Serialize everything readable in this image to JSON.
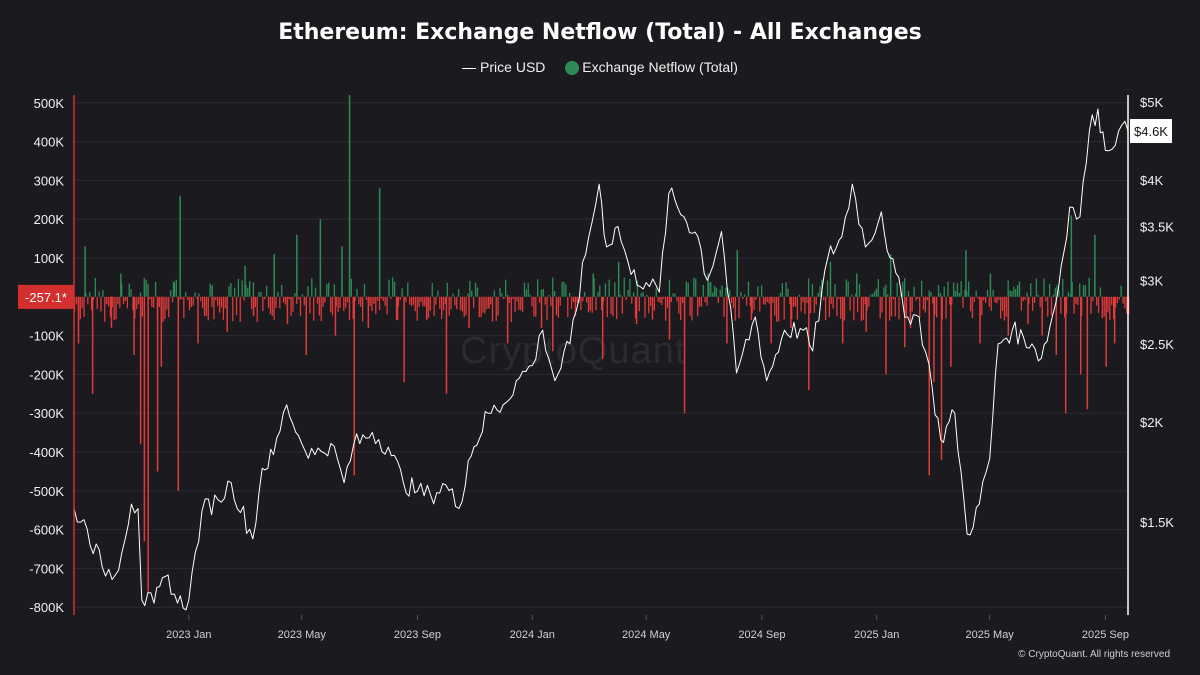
{
  "title": "Ethereum: Exchange Netflow (Total) - All Exchanges",
  "legend": {
    "price_label": "Price USD",
    "netflow_label": "Exchange Netflow (Total)"
  },
  "watermark": "CryptoQuant",
  "footer": "© CryptoQuant. All rights reserved",
  "colors": {
    "background": "#1b1b1f",
    "inflow": "#2e8b57",
    "outflow": "#e03a3a",
    "price": "#ffffff",
    "current_netflow_tag": "#d32f2f"
  },
  "current_values": {
    "netflow_label": "-257.1*",
    "netflow": -257.1,
    "price_label": "$4.6K",
    "price": 4600
  },
  "chart_data": {
    "type": "bar+line",
    "title": "Ethereum: Exchange Netflow (Total) - All Exchanges",
    "x_range": [
      "2022-09-01",
      "2025-09-25"
    ],
    "x_ticks": [
      {
        "date": "2023-01-01",
        "label": "2023 Jan"
      },
      {
        "date": "2023-05-01",
        "label": "2023 May"
      },
      {
        "date": "2023-09-01",
        "label": "2023 Sep"
      },
      {
        "date": "2024-01-01",
        "label": "2024 Jan"
      },
      {
        "date": "2024-05-01",
        "label": "2024 May"
      },
      {
        "date": "2024-09-01",
        "label": "2024 Sep"
      },
      {
        "date": "2025-01-01",
        "label": "2025 Jan"
      },
      {
        "date": "2025-05-01",
        "label": "2025 May"
      },
      {
        "date": "2025-09-01",
        "label": "2025 Sep"
      }
    ],
    "left_axis": {
      "series": "Exchange Netflow (Total)",
      "range": [
        -820000,
        520000
      ],
      "ticks": [
        {
          "value": 500000,
          "label": "500K"
        },
        {
          "value": 400000,
          "label": "400K"
        },
        {
          "value": 300000,
          "label": "300K"
        },
        {
          "value": 200000,
          "label": "200K"
        },
        {
          "value": 100000,
          "label": "100K"
        },
        {
          "value": -100000,
          "label": "-100K"
        },
        {
          "value": -200000,
          "label": "-200K"
        },
        {
          "value": -300000,
          "label": "-300K"
        },
        {
          "value": -400000,
          "label": "-400K"
        },
        {
          "value": -500000,
          "label": "-500K"
        },
        {
          "value": -600000,
          "label": "-600K"
        },
        {
          "value": -700000,
          "label": "-700K"
        },
        {
          "value": -800000,
          "label": "-800K"
        }
      ]
    },
    "right_axis": {
      "series": "Price USD",
      "scale": "log",
      "range": [
        1150,
        5100
      ],
      "ticks": [
        {
          "value": 5000,
          "label": "$5K"
        },
        {
          "value": 4000,
          "label": "$4K"
        },
        {
          "value": 3500,
          "label": "$3.5K"
        },
        {
          "value": 3000,
          "label": "$3K"
        },
        {
          "value": 2500,
          "label": "$2.5K"
        },
        {
          "value": 2000,
          "label": "$2K"
        },
        {
          "value": 1500,
          "label": "$1.5K"
        }
      ]
    },
    "series": [
      {
        "name": "Price USD",
        "kind": "line",
        "axis": "right",
        "points": [
          [
            "2022-09-01",
            1560
          ],
          [
            "2022-09-15",
            1470
          ],
          [
            "2022-10-01",
            1320
          ],
          [
            "2022-10-15",
            1290
          ],
          [
            "2022-11-01",
            1580
          ],
          [
            "2022-11-08",
            1560
          ],
          [
            "2022-11-12",
            1200
          ],
          [
            "2022-11-25",
            1190
          ],
          [
            "2022-12-10",
            1290
          ],
          [
            "2022-12-20",
            1190
          ],
          [
            "2023-01-01",
            1200
          ],
          [
            "2023-01-15",
            1550
          ],
          [
            "2023-02-01",
            1600
          ],
          [
            "2023-02-15",
            1680
          ],
          [
            "2023-03-10",
            1430
          ],
          [
            "2023-03-20",
            1750
          ],
          [
            "2023-04-01",
            1820
          ],
          [
            "2023-04-15",
            2100
          ],
          [
            "2023-05-01",
            1880
          ],
          [
            "2023-05-15",
            1820
          ],
          [
            "2023-06-01",
            1880
          ],
          [
            "2023-06-15",
            1680
          ],
          [
            "2023-06-25",
            1870
          ],
          [
            "2023-07-15",
            1940
          ],
          [
            "2023-08-01",
            1860
          ],
          [
            "2023-08-17",
            1680
          ],
          [
            "2023-09-01",
            1640
          ],
          [
            "2023-09-15",
            1620
          ],
          [
            "2023-10-01",
            1670
          ],
          [
            "2023-10-15",
            1560
          ],
          [
            "2023-10-25",
            1790
          ],
          [
            "2023-11-15",
            2050
          ],
          [
            "2023-12-01",
            2100
          ],
          [
            "2023-12-15",
            2250
          ],
          [
            "2024-01-01",
            2350
          ],
          [
            "2024-01-12",
            2600
          ],
          [
            "2024-01-25",
            2250
          ],
          [
            "2024-02-10",
            2500
          ],
          [
            "2024-03-01",
            3400
          ],
          [
            "2024-03-12",
            3950
          ],
          [
            "2024-03-20",
            3300
          ],
          [
            "2024-04-01",
            3500
          ],
          [
            "2024-04-15",
            3050
          ],
          [
            "2024-05-01",
            2980
          ],
          [
            "2024-05-15",
            2900
          ],
          [
            "2024-05-25",
            3850
          ],
          [
            "2024-06-10",
            3600
          ],
          [
            "2024-06-25",
            3400
          ],
          [
            "2024-07-05",
            3000
          ],
          [
            "2024-07-20",
            3450
          ],
          [
            "2024-08-05",
            2300
          ],
          [
            "2024-08-25",
            2700
          ],
          [
            "2024-09-06",
            2250
          ],
          [
            "2024-09-25",
            2600
          ],
          [
            "2024-10-15",
            2600
          ],
          [
            "2024-10-25",
            2450
          ],
          [
            "2024-11-10",
            3200
          ],
          [
            "2024-11-25",
            3400
          ],
          [
            "2024-12-06",
            3950
          ],
          [
            "2024-12-20",
            3300
          ],
          [
            "2025-01-06",
            3650
          ],
          [
            "2025-01-15",
            3200
          ],
          [
            "2025-02-03",
            2700
          ],
          [
            "2025-02-15",
            2700
          ],
          [
            "2025-03-01",
            2200
          ],
          [
            "2025-03-10",
            1900
          ],
          [
            "2025-03-25",
            2050
          ],
          [
            "2025-04-07",
            1450
          ],
          [
            "2025-04-20",
            1580
          ],
          [
            "2025-05-01",
            1800
          ],
          [
            "2025-05-10",
            2500
          ],
          [
            "2025-05-25",
            2600
          ],
          [
            "2025-06-15",
            2500
          ],
          [
            "2025-06-25",
            2400
          ],
          [
            "2025-07-10",
            2800
          ],
          [
            "2025-07-25",
            3700
          ],
          [
            "2025-08-05",
            3600
          ],
          [
            "2025-08-15",
            4600
          ],
          [
            "2025-08-24",
            4900
          ],
          [
            "2025-09-01",
            4350
          ],
          [
            "2025-09-15",
            4600
          ],
          [
            "2025-09-25",
            4600
          ]
        ]
      },
      {
        "name": "Exchange Netflow (Total)",
        "kind": "bar",
        "axis": "left",
        "note": "daily bars; positive values shown in green (inflow), negative in red (outflow); notable spikes listed",
        "points": [
          [
            "2022-09-05",
            -120000
          ],
          [
            "2022-09-12",
            130000
          ],
          [
            "2022-09-20",
            -250000
          ],
          [
            "2022-10-10",
            -80000
          ],
          [
            "2022-10-20",
            60000
          ],
          [
            "2022-11-03",
            -150000
          ],
          [
            "2022-11-10",
            -380000
          ],
          [
            "2022-11-14",
            -630000
          ],
          [
            "2022-11-18",
            -760000
          ],
          [
            "2022-11-28",
            -450000
          ],
          [
            "2022-12-02",
            -180000
          ],
          [
            "2022-12-15",
            40000
          ],
          [
            "2022-12-20",
            -500000
          ],
          [
            "2022-12-22",
            260000
          ],
          [
            "2023-01-10",
            -120000
          ],
          [
            "2023-01-25",
            30000
          ],
          [
            "2023-02-10",
            -90000
          ],
          [
            "2023-03-01",
            80000
          ],
          [
            "2023-03-10",
            -50000
          ],
          [
            "2023-04-01",
            110000
          ],
          [
            "2023-04-15",
            -70000
          ],
          [
            "2023-04-25",
            160000
          ],
          [
            "2023-05-05",
            -150000
          ],
          [
            "2023-05-20",
            200000
          ],
          [
            "2023-06-05",
            -100000
          ],
          [
            "2023-06-12",
            130000
          ],
          [
            "2023-06-20",
            520000
          ],
          [
            "2023-06-25",
            -460000
          ],
          [
            "2023-07-10",
            -80000
          ],
          [
            "2023-07-22",
            280000
          ],
          [
            "2023-08-10",
            -60000
          ],
          [
            "2023-08-17",
            -220000
          ],
          [
            "2023-09-10",
            -60000
          ],
          [
            "2023-10-01",
            -250000
          ],
          [
            "2023-10-25",
            -80000
          ],
          [
            "2023-11-15",
            -30000
          ],
          [
            "2023-12-05",
            -120000
          ],
          [
            "2024-01-10",
            -80000
          ],
          [
            "2024-01-22",
            -140000
          ],
          [
            "2024-02-15",
            -50000
          ],
          [
            "2024-03-05",
            60000
          ],
          [
            "2024-03-15",
            -160000
          ],
          [
            "2024-04-01",
            90000
          ],
          [
            "2024-04-20",
            -70000
          ],
          [
            "2024-05-25",
            -110000
          ],
          [
            "2024-06-10",
            -300000
          ],
          [
            "2024-07-05",
            60000
          ],
          [
            "2024-07-25",
            -120000
          ],
          [
            "2024-08-05",
            120000
          ],
          [
            "2024-08-20",
            -60000
          ],
          [
            "2024-09-10",
            -120000
          ],
          [
            "2024-10-01",
            -80000
          ],
          [
            "2024-10-20",
            -240000
          ],
          [
            "2024-11-12",
            90000
          ],
          [
            "2024-11-25",
            -120000
          ],
          [
            "2024-12-10",
            60000
          ],
          [
            "2024-12-20",
            -90000
          ],
          [
            "2025-01-10",
            -200000
          ],
          [
            "2025-01-15",
            110000
          ],
          [
            "2025-01-30",
            -130000
          ],
          [
            "2025-02-05",
            -80000
          ],
          [
            "2025-02-25",
            -460000
          ],
          [
            "2025-03-02",
            -220000
          ],
          [
            "2025-03-10",
            -420000
          ],
          [
            "2025-03-20",
            -180000
          ],
          [
            "2025-04-05",
            120000
          ],
          [
            "2025-04-20",
            -120000
          ],
          [
            "2025-05-01",
            60000
          ],
          [
            "2025-05-20",
            -100000
          ],
          [
            "2025-06-10",
            -70000
          ],
          [
            "2025-06-25",
            -100000
          ],
          [
            "2025-07-10",
            -150000
          ],
          [
            "2025-07-20",
            -300000
          ],
          [
            "2025-07-26",
            210000
          ],
          [
            "2025-08-05",
            -200000
          ],
          [
            "2025-08-12",
            -290000
          ],
          [
            "2025-08-20",
            160000
          ],
          [
            "2025-09-01",
            -180000
          ],
          [
            "2025-09-10",
            -120000
          ],
          [
            "2025-09-20",
            -257.1
          ]
        ]
      }
    ],
    "legend_position": "top-center",
    "grid": true
  }
}
